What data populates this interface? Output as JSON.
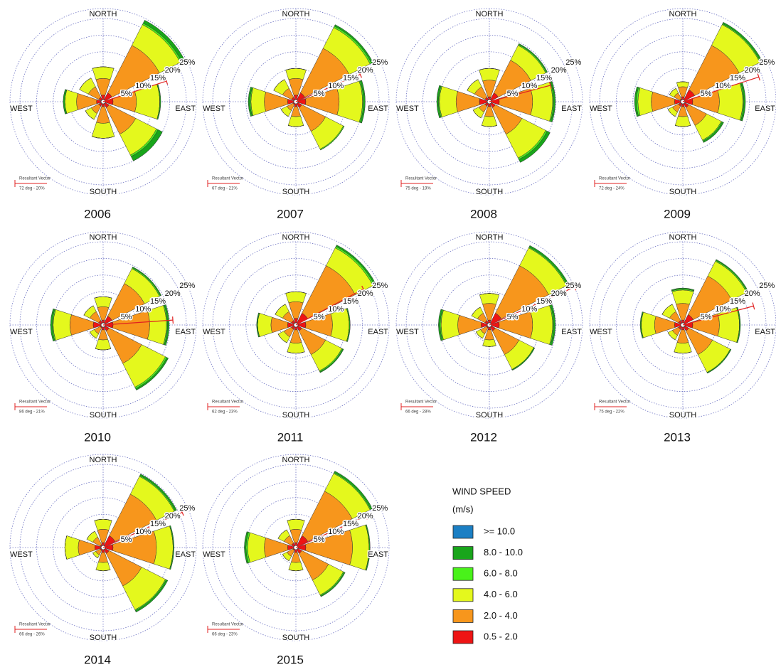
{
  "legend": {
    "title": "WIND SPEED",
    "unit": "(m/s)",
    "items": [
      {
        "name": ">= 10.0",
        "color": "#1b7fc4"
      },
      {
        "name": "8.0 - 10.0",
        "color": "#19a51b"
      },
      {
        "name": "6.0 - 8.0",
        "color": "#49f21a"
      },
      {
        "name": "4.0 - 6.0",
        "color": "#e4f81d"
      },
      {
        "name": "2.0 - 4.0",
        "color": "#f7961c"
      },
      {
        "name": "0.5 - 2.0",
        "color": "#ee1414"
      }
    ]
  },
  "compass": [
    "NORTH",
    "EAST",
    "SOUTH",
    "WEST"
  ],
  "rings": [
    {
      "value": 5,
      "label": "5%"
    },
    {
      "value": 10,
      "label": "10%"
    },
    {
      "value": 15,
      "label": "15%"
    },
    {
      "value": 20,
      "label": "20%"
    },
    {
      "value": 25,
      "label": "25%"
    }
  ],
  "rlim": [
    0,
    28
  ],
  "vector_title": "Resultant Vector",
  "chart_data": [
    {
      "type": "windrose",
      "title": "2006",
      "resultant": {
        "deg": 72,
        "pct": 20,
        "label": "72 deg - 20%"
      },
      "speed_bins": [
        [
          0,
          1,
          0.3,
          1.5,
          0,
          0,
          0.5,
          0
        ],
        [
          0,
          0.5,
          0,
          0.5,
          0,
          0,
          0,
          0
        ],
        [
          3.5,
          7,
          7,
          7,
          4.5,
          2,
          3.5,
          3
        ],
        [
          5,
          16,
          7,
          9,
          5,
          2.5,
          6,
          3.5
        ],
        [
          2,
          3,
          3,
          2,
          1.5,
          1.5,
          2,
          1.5
        ]
      ]
    },
    {
      "type": "windrose",
      "title": "2007",
      "resultant": {
        "deg": 67,
        "pct": 21,
        "label": "67 deg - 21%"
      },
      "speed_bins": [
        [
          0,
          0.5,
          0.5,
          0,
          0,
          0,
          0.5,
          0
        ],
        [
          0,
          0.5,
          0.3,
          0.3,
          0,
          0,
          0.3,
          0
        ],
        [
          3,
          7,
          7,
          6,
          3,
          2,
          4,
          3
        ],
        [
          5,
          15,
          10,
          8,
          3,
          2,
          7,
          3
        ],
        [
          2,
          3,
          3,
          2,
          1.5,
          1,
          2.5,
          1.5
        ]
      ]
    },
    {
      "type": "windrose",
      "title": "2008",
      "resultant": {
        "deg": 75,
        "pct": 19,
        "label": "75 deg - 19%"
      },
      "speed_bins": [
        [
          0,
          0.3,
          0.5,
          1,
          0,
          0,
          0.5,
          0
        ],
        [
          0,
          0.3,
          0.3,
          0.5,
          0,
          0,
          0.3,
          0
        ],
        [
          3.5,
          5,
          6,
          8,
          3,
          2,
          5,
          2.5
        ],
        [
          5,
          11,
          10,
          9,
          3,
          2,
          7,
          3.5
        ],
        [
          1.5,
          3,
          3,
          2,
          1.5,
          1.5,
          3,
          1.5
        ]
      ]
    },
    {
      "type": "windrose",
      "title": "2009",
      "resultant": {
        "deg": 72,
        "pct": 24,
        "label": "72 deg - 24%"
      },
      "speed_bins": [
        [
          0,
          0.5,
          0.5,
          0.5,
          0,
          0,
          0.5,
          0
        ],
        [
          0,
          0.3,
          0.3,
          0.3,
          0,
          0,
          0.5,
          0
        ],
        [
          1.5,
          7,
          7,
          5,
          3,
          1.5,
          4,
          1.5
        ],
        [
          3,
          15,
          8,
          6,
          3,
          2,
          7,
          2
        ],
        [
          1.5,
          4,
          3,
          2,
          1.5,
          1.5,
          2.5,
          1
        ]
      ]
    },
    {
      "type": "windrose",
      "title": "2010",
      "resultant": {
        "deg": 86,
        "pct": 21,
        "label": "86 deg - 21%"
      },
      "speed_bins": [
        [
          0,
          0.3,
          0.5,
          0.5,
          0,
          0,
          0.5,
          0
        ],
        [
          0,
          0.3,
          0.3,
          0.5,
          0,
          0,
          0.3,
          0
        ],
        [
          3,
          5,
          5,
          8,
          3,
          1.5,
          5,
          2
        ],
        [
          4,
          11,
          11,
          11,
          3,
          2,
          7,
          3
        ],
        [
          1.5,
          3,
          3,
          2,
          1.5,
          1,
          3,
          1.5
        ]
      ]
    },
    {
      "type": "windrose",
      "title": "2011",
      "resultant": {
        "deg": 62,
        "pct": 23,
        "label": "62 deg - 23%"
      },
      "speed_bins": [
        [
          0,
          0.5,
          0.3,
          0.3,
          0,
          0,
          0.3,
          0
        ],
        [
          0,
          0.5,
          0,
          0.3,
          0,
          0,
          0,
          0
        ],
        [
          3,
          6,
          5,
          5.5,
          3,
          2,
          4,
          2.5
        ],
        [
          5,
          16,
          8,
          8,
          4,
          2.5,
          5,
          3
        ],
        [
          2,
          4,
          3,
          2,
          1.5,
          1.5,
          2.5,
          1.5
        ]
      ]
    },
    {
      "type": "windrose",
      "title": "2012",
      "resultant": {
        "deg": 66,
        "pct": 28,
        "label": "66 deg - 28%"
      },
      "speed_bins": [
        [
          0,
          0.5,
          0.5,
          0.3,
          0,
          0,
          0.5,
          0
        ],
        [
          0,
          0.3,
          0.3,
          0,
          0,
          0,
          0.3,
          0
        ],
        [
          3,
          6,
          6,
          5,
          2,
          1.5,
          5,
          2
        ],
        [
          5,
          16,
          10,
          8,
          3,
          2,
          7,
          2.5
        ],
        [
          1.5,
          4,
          3,
          2,
          1.5,
          1,
          2.5,
          1.5
        ]
      ]
    },
    {
      "type": "windrose",
      "title": "2013",
      "resultant": {
        "deg": 75,
        "pct": 22,
        "label": "75 deg - 22%"
      },
      "speed_bins": [
        [
          0.3,
          0.3,
          0.3,
          0.3,
          0,
          0,
          0.3,
          0
        ],
        [
          0.3,
          0.3,
          0,
          0,
          0,
          0,
          0,
          0
        ],
        [
          4,
          5,
          6,
          6,
          3,
          1.5,
          4,
          2.5
        ],
        [
          5,
          13,
          8,
          8,
          4,
          2,
          6,
          3
        ],
        [
          1.5,
          3.5,
          3,
          2,
          1.5,
          1.5,
          2.5,
          1.5
        ]
      ]
    },
    {
      "type": "windrose",
      "title": "2014",
      "resultant": {
        "deg": 66,
        "pct": 26,
        "label": "66 deg - 26%"
      },
      "speed_bins": [
        [
          0,
          0.5,
          0.3,
          0.5,
          0,
          0,
          0,
          0
        ],
        [
          0,
          0.3,
          0,
          0.3,
          0,
          0,
          0,
          0
        ],
        [
          3,
          6,
          5,
          8,
          2.5,
          1,
          4,
          2
        ],
        [
          4,
          14,
          13,
          11,
          3,
          1.5,
          5,
          2.5
        ],
        [
          1.5,
          4,
          3,
          2,
          1.5,
          1,
          2.5,
          1
        ]
      ]
    },
    {
      "type": "windrose",
      "title": "2015",
      "resultant": {
        "deg": 66,
        "pct": 23,
        "label": "66 deg - 23%"
      },
      "speed_bins": [
        [
          0,
          0.5,
          0.3,
          0.3,
          0,
          0,
          0.5,
          0
        ],
        [
          0,
          0.3,
          0,
          0.3,
          0,
          0,
          0.5,
          0
        ],
        [
          3,
          6,
          5,
          5,
          2.5,
          1.5,
          5,
          2
        ],
        [
          4,
          15,
          14,
          9,
          3,
          2,
          7,
          2.5
        ],
        [
          1.5,
          4,
          3,
          2,
          1.5,
          1,
          2.5,
          1.5
        ]
      ]
    }
  ]
}
